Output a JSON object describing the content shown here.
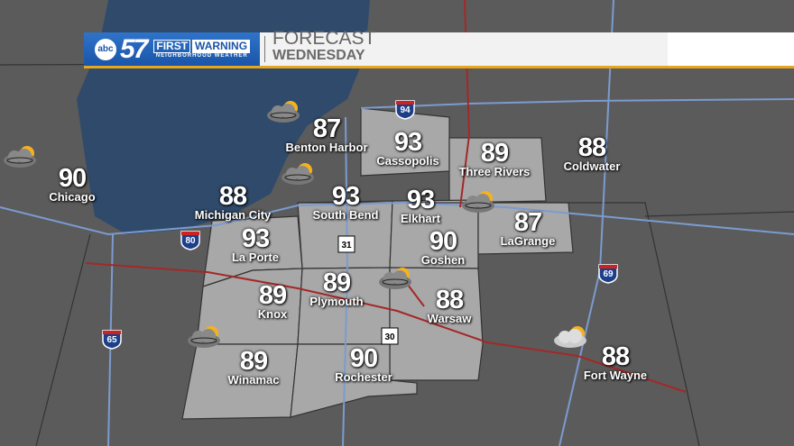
{
  "header": {
    "station": "57",
    "network": "abc",
    "brand_first": "FIRST",
    "brand_warning": "WARNING",
    "brand_sub": "NEIGHBORHOOD WEATHER",
    "title": "FORECAST",
    "day": "WEDNESDAY"
  },
  "colors": {
    "brand_blue": "#1a55a8",
    "accent_gold": "#e6a620",
    "lake": "#2f4a6b",
    "county": "#a9a9a9"
  },
  "cities": [
    {
      "name": "Chicago",
      "temp": "90"
    },
    {
      "name": "Benton Harbor",
      "temp": "87"
    },
    {
      "name": "Cassopolis",
      "temp": "93"
    },
    {
      "name": "Three Rivers",
      "temp": "89"
    },
    {
      "name": "Coldwater",
      "temp": "88"
    },
    {
      "name": "Michigan City",
      "temp": "88"
    },
    {
      "name": "South Bend",
      "temp": "93"
    },
    {
      "name": "Elkhart",
      "temp": "93"
    },
    {
      "name": "LaGrange",
      "temp": "87"
    },
    {
      "name": "La Porte",
      "temp": "93"
    },
    {
      "name": "Goshen",
      "temp": "90"
    },
    {
      "name": "Knox",
      "temp": "89"
    },
    {
      "name": "Plymouth",
      "temp": "89"
    },
    {
      "name": "Warsaw",
      "temp": "88"
    },
    {
      "name": "Winamac",
      "temp": "89"
    },
    {
      "name": "Rochester",
      "temp": "90"
    },
    {
      "name": "Fort Wayne",
      "temp": "88"
    }
  ],
  "highways": [
    "94",
    "80",
    "31",
    "30",
    "65",
    "69"
  ],
  "weather_icons": [
    "partly-cloudy-storm-icon",
    "partly-cloudy-storm-icon",
    "partly-cloudy-storm-icon",
    "partly-cloudy-storm-icon",
    "partly-cloudy-storm-icon",
    "partly-cloudy-storm-icon",
    "partly-cloudy-icon"
  ]
}
